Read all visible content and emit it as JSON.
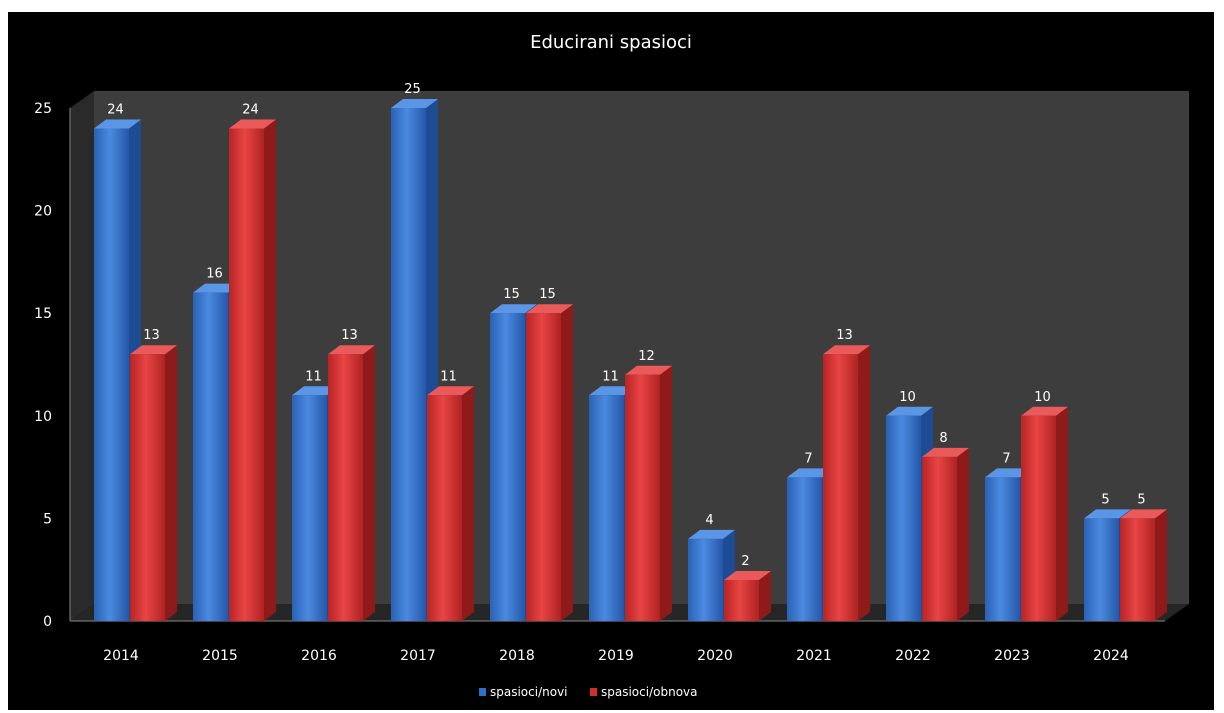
{
  "chart_data": {
    "type": "bar",
    "title": "Educirani spasioci",
    "categories": [
      "2014",
      "2015",
      "2016",
      "2017",
      "2018",
      "2019",
      "2020",
      "2021",
      "2022",
      "2023",
      "2024"
    ],
    "series": [
      {
        "name": "spasioci/novi",
        "values": [
          24,
          16,
          11,
          25,
          15,
          11,
          4,
          7,
          10,
          7,
          5
        ],
        "color": "#2e6fc7"
      },
      {
        "name": "spasioci/obnova",
        "values": [
          13,
          24,
          13,
          11,
          15,
          12,
          2,
          13,
          8,
          10,
          5
        ],
        "color": "#d42f2f"
      }
    ],
    "ylim": [
      0,
      25
    ],
    "yticks": [
      "0",
      "5",
      "10",
      "15",
      "20",
      "25"
    ],
    "legend_position": "bottom",
    "style": "3d-column",
    "background": "#000000",
    "plot_background": "#3d3d3d",
    "gridlines": false
  }
}
